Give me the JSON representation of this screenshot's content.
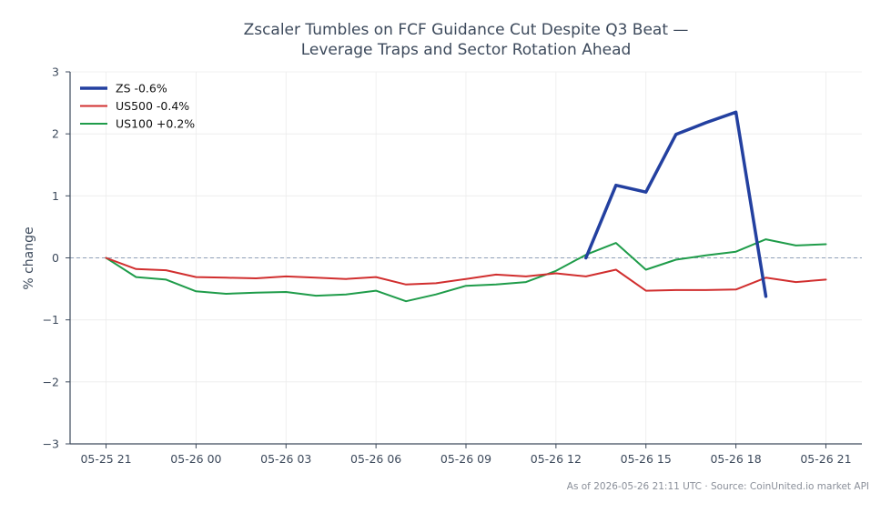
{
  "chart_data": {
    "type": "line",
    "title_line1": "Zscaler Tumbles on FCF Guidance Cut Despite Q3 Beat —",
    "title_line2": "Leverage Traps and Sector Rotation Ahead",
    "ylabel": "% change",
    "xlabel": "",
    "ylim": [
      -3,
      3
    ],
    "yticks": [
      -3,
      -2,
      -1,
      0,
      1,
      2,
      3
    ],
    "ytick_labels": [
      "−3",
      "−2",
      "−1",
      "0",
      "1",
      "2",
      "3"
    ],
    "x_tick_labels": [
      "05-25 21",
      "05-26 00",
      "05-26 03",
      "05-26 06",
      "05-26 09",
      "05-26 12",
      "05-26 15",
      "05-26 18",
      "05-26 21"
    ],
    "x_tick_hours": [
      0,
      3,
      6,
      9,
      12,
      15,
      18,
      21,
      24
    ],
    "xlim_hours": [
      -1.2,
      25.2
    ],
    "reference_line": 0,
    "grid": true,
    "legend_position": "top-left",
    "series": [
      {
        "name": "ZS -0.6%",
        "color": "#2340a0",
        "hours": [
          16,
          17,
          18,
          19,
          20,
          21,
          22
        ],
        "values": [
          0.0,
          1.17,
          1.06,
          1.99,
          2.18,
          2.35,
          -0.62
        ]
      },
      {
        "name": "US500 -0.4%",
        "color": "#d12f2f",
        "hours": [
          0,
          1,
          2,
          3,
          4,
          5,
          6,
          7,
          8,
          9,
          10,
          11,
          12,
          13,
          14,
          15,
          16,
          17,
          18,
          19,
          20,
          21,
          22,
          23,
          24
        ],
        "values": [
          0.0,
          -0.18,
          -0.2,
          -0.31,
          -0.32,
          -0.33,
          -0.3,
          -0.32,
          -0.34,
          -0.31,
          -0.43,
          -0.41,
          -0.34,
          -0.27,
          -0.3,
          -0.25,
          -0.3,
          -0.19,
          -0.53,
          -0.52,
          -0.52,
          -0.51,
          -0.32,
          -0.39,
          -0.35
        ]
      },
      {
        "name": "US100 +0.2%",
        "color": "#1f9c4a",
        "hours": [
          0,
          1,
          2,
          3,
          4,
          5,
          6,
          7,
          8,
          9,
          10,
          11,
          12,
          13,
          14,
          15,
          16,
          17,
          18,
          19,
          20,
          21,
          22,
          23,
          24
        ],
        "values": [
          0.0,
          -0.31,
          -0.35,
          -0.54,
          -0.58,
          -0.56,
          -0.55,
          -0.61,
          -0.59,
          -0.53,
          -0.7,
          -0.59,
          -0.45,
          -0.43,
          -0.39,
          -0.21,
          0.05,
          0.24,
          -0.19,
          -0.03,
          0.04,
          0.1,
          0.3,
          0.2,
          0.22
        ]
      }
    ],
    "source_note": "As of 2026-05-26 21:11 UTC · Source: CoinUnited.io market API"
  }
}
